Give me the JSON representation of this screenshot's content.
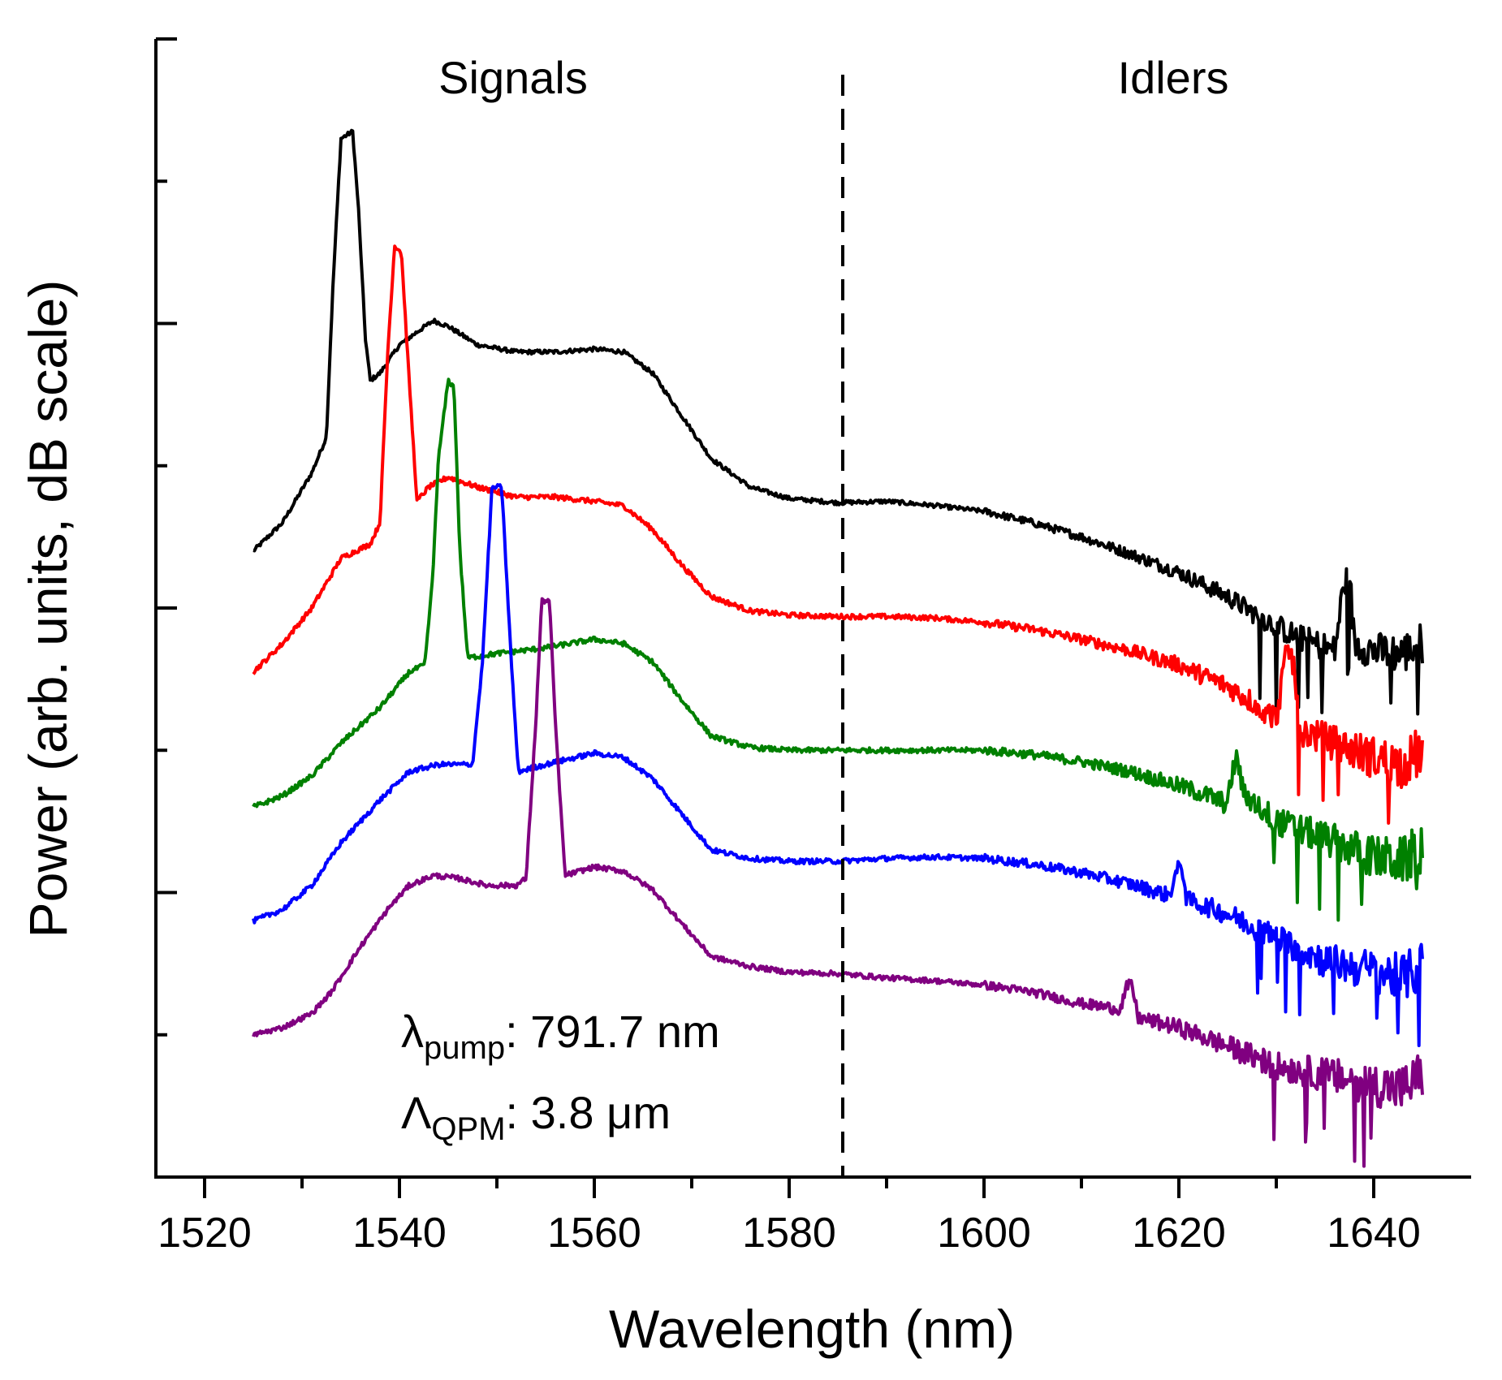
{
  "chart_data": {
    "type": "line",
    "title": "",
    "xlabel": "Wavelength (nm)",
    "ylabel": "Power (arb. units, dB scale)",
    "xlim": [
      1515,
      1650
    ],
    "ylim": [
      0,
      8
    ],
    "x_ticks": [
      "1520",
      "1540",
      "1560",
      "1580",
      "1600",
      "1620",
      "1640"
    ],
    "y_ticks": "unlabeled",
    "grid": false,
    "legend": "none",
    "annotations": {
      "signals": "Signals",
      "idlers": "Idlers",
      "pump_symbol": "λ",
      "pump_sub": "pump",
      "pump_value": ": 791.7 nm",
      "qpm_symbol": "Λ",
      "qpm_sub": "QPM",
      "qpm_value": ": 3.8 μm"
    },
    "divider_x": 1585.5,
    "series": [
      {
        "color": "#000000",
        "noise": 0.06,
        "points": [
          [
            1525,
            4.4
          ],
          [
            1528,
            4.6
          ],
          [
            1531,
            4.95
          ],
          [
            1532.5,
            5.2
          ],
          [
            1533.2,
            6.3
          ],
          [
            1534,
            7.3
          ],
          [
            1535.2,
            7.35
          ],
          [
            1535.8,
            6.8
          ],
          [
            1536.5,
            5.9
          ],
          [
            1537,
            5.6
          ],
          [
            1538,
            5.65
          ],
          [
            1540,
            5.85
          ],
          [
            1542,
            5.95
          ],
          [
            1543.5,
            6.02
          ],
          [
            1545,
            5.98
          ],
          [
            1548,
            5.85
          ],
          [
            1552,
            5.8
          ],
          [
            1556,
            5.8
          ],
          [
            1560,
            5.82
          ],
          [
            1563,
            5.8
          ],
          [
            1566,
            5.65
          ],
          [
            1569,
            5.35
          ],
          [
            1572,
            5.05
          ],
          [
            1576,
            4.85
          ],
          [
            1580,
            4.77
          ],
          [
            1585,
            4.74
          ],
          [
            1590,
            4.75
          ],
          [
            1595,
            4.72
          ],
          [
            1600,
            4.68
          ],
          [
            1605,
            4.6
          ],
          [
            1610,
            4.5
          ],
          [
            1615,
            4.38
          ],
          [
            1620,
            4.25
          ],
          [
            1625,
            4.08
          ],
          [
            1628,
            3.95
          ],
          [
            1632,
            3.8
          ],
          [
            1636,
            3.7
          ],
          [
            1636.5,
            3.95
          ],
          [
            1637,
            4.2
          ],
          [
            1637.6,
            4.15
          ],
          [
            1638,
            3.75
          ],
          [
            1640,
            3.7
          ],
          [
            1643,
            3.68
          ],
          [
            1645,
            3.75
          ]
        ]
      },
      {
        "color": "#ff0000",
        "noise": 0.07,
        "points": [
          [
            1525,
            3.55
          ],
          [
            1528,
            3.75
          ],
          [
            1531,
            4.0
          ],
          [
            1534,
            4.35
          ],
          [
            1537,
            4.45
          ],
          [
            1538,
            4.6
          ],
          [
            1538.8,
            5.8
          ],
          [
            1539.5,
            6.55
          ],
          [
            1540.2,
            6.5
          ],
          [
            1541,
            5.6
          ],
          [
            1541.8,
            4.75
          ],
          [
            1543,
            4.85
          ],
          [
            1545,
            4.92
          ],
          [
            1548,
            4.85
          ],
          [
            1552,
            4.78
          ],
          [
            1556,
            4.78
          ],
          [
            1560,
            4.75
          ],
          [
            1563,
            4.72
          ],
          [
            1566,
            4.55
          ],
          [
            1569,
            4.3
          ],
          [
            1572,
            4.08
          ],
          [
            1576,
            3.98
          ],
          [
            1580,
            3.95
          ],
          [
            1585,
            3.94
          ],
          [
            1590,
            3.94
          ],
          [
            1595,
            3.93
          ],
          [
            1600,
            3.9
          ],
          [
            1605,
            3.85
          ],
          [
            1610,
            3.78
          ],
          [
            1615,
            3.7
          ],
          [
            1620,
            3.6
          ],
          [
            1625,
            3.45
          ],
          [
            1628,
            3.32
          ],
          [
            1630,
            3.22
          ],
          [
            1630.6,
            3.5
          ],
          [
            1631.2,
            3.72
          ],
          [
            1631.8,
            3.6
          ],
          [
            1632.3,
            3.15
          ],
          [
            1636,
            3.05
          ],
          [
            1640,
            2.95
          ],
          [
            1643,
            2.9
          ],
          [
            1645,
            3.0
          ]
        ]
      },
      {
        "color": "#008000",
        "noise": 0.07,
        "points": [
          [
            1525,
            2.6
          ],
          [
            1528,
            2.68
          ],
          [
            1531,
            2.82
          ],
          [
            1534,
            3.05
          ],
          [
            1538,
            3.3
          ],
          [
            1541,
            3.55
          ],
          [
            1542.6,
            3.6
          ],
          [
            1543.4,
            4.2
          ],
          [
            1544,
            5.05
          ],
          [
            1545,
            5.6
          ],
          [
            1545.6,
            5.55
          ],
          [
            1546.2,
            4.4
          ],
          [
            1547,
            3.65
          ],
          [
            1550,
            3.68
          ],
          [
            1555,
            3.72
          ],
          [
            1560,
            3.78
          ],
          [
            1563,
            3.75
          ],
          [
            1566,
            3.62
          ],
          [
            1569,
            3.35
          ],
          [
            1572,
            3.1
          ],
          [
            1576,
            3.02
          ],
          [
            1580,
            3.0
          ],
          [
            1585,
            3.0
          ],
          [
            1590,
            3.0
          ],
          [
            1595,
            3.0
          ],
          [
            1600,
            3.0
          ],
          [
            1605,
            2.97
          ],
          [
            1610,
            2.92
          ],
          [
            1615,
            2.85
          ],
          [
            1620,
            2.75
          ],
          [
            1623,
            2.68
          ],
          [
            1625,
            2.62
          ],
          [
            1625.5,
            2.85
          ],
          [
            1626,
            2.95
          ],
          [
            1626.6,
            2.7
          ],
          [
            1630,
            2.5
          ],
          [
            1635,
            2.38
          ],
          [
            1640,
            2.25
          ],
          [
            1643,
            2.22
          ],
          [
            1645,
            2.32
          ]
        ]
      },
      {
        "color": "#0000ff",
        "noise": 0.07,
        "points": [
          [
            1525,
            1.8
          ],
          [
            1528,
            1.88
          ],
          [
            1531,
            2.05
          ],
          [
            1534,
            2.35
          ],
          [
            1538,
            2.65
          ],
          [
            1541,
            2.85
          ],
          [
            1544,
            2.9
          ],
          [
            1547.5,
            2.9
          ],
          [
            1548.5,
            3.6
          ],
          [
            1549.5,
            4.85
          ],
          [
            1550.5,
            4.85
          ],
          [
            1551.5,
            3.6
          ],
          [
            1552.2,
            2.85
          ],
          [
            1555,
            2.9
          ],
          [
            1560,
            2.98
          ],
          [
            1563,
            2.95
          ],
          [
            1566,
            2.8
          ],
          [
            1569,
            2.55
          ],
          [
            1572,
            2.3
          ],
          [
            1576,
            2.24
          ],
          [
            1580,
            2.22
          ],
          [
            1585,
            2.22
          ],
          [
            1590,
            2.24
          ],
          [
            1595,
            2.25
          ],
          [
            1600,
            2.24
          ],
          [
            1605,
            2.2
          ],
          [
            1610,
            2.14
          ],
          [
            1615,
            2.06
          ],
          [
            1619,
            1.98
          ],
          [
            1619.8,
            2.15
          ],
          [
            1620.3,
            2.2
          ],
          [
            1620.8,
            1.95
          ],
          [
            1625,
            1.85
          ],
          [
            1630,
            1.68
          ],
          [
            1635,
            1.52
          ],
          [
            1640,
            1.45
          ],
          [
            1643,
            1.4
          ],
          [
            1645,
            1.48
          ]
        ]
      },
      {
        "color": "#800080",
        "noise": 0.07,
        "points": [
          [
            1525,
            1.0
          ],
          [
            1528,
            1.05
          ],
          [
            1531,
            1.15
          ],
          [
            1533,
            1.3
          ],
          [
            1536,
            1.62
          ],
          [
            1539,
            1.9
          ],
          [
            1541,
            2.05
          ],
          [
            1543.5,
            2.12
          ],
          [
            1546,
            2.1
          ],
          [
            1549,
            2.05
          ],
          [
            1552,
            2.05
          ],
          [
            1553,
            2.1
          ],
          [
            1554,
            3.2
          ],
          [
            1554.6,
            4.05
          ],
          [
            1555.4,
            4.05
          ],
          [
            1556,
            3.2
          ],
          [
            1557,
            2.12
          ],
          [
            1560,
            2.18
          ],
          [
            1563,
            2.15
          ],
          [
            1566,
            2.02
          ],
          [
            1569,
            1.78
          ],
          [
            1572,
            1.55
          ],
          [
            1576,
            1.48
          ],
          [
            1580,
            1.44
          ],
          [
            1585,
            1.43
          ],
          [
            1590,
            1.4
          ],
          [
            1595,
            1.38
          ],
          [
            1600,
            1.35
          ],
          [
            1605,
            1.3
          ],
          [
            1610,
            1.22
          ],
          [
            1614,
            1.18
          ],
          [
            1614.6,
            1.33
          ],
          [
            1615.2,
            1.35
          ],
          [
            1615.8,
            1.12
          ],
          [
            1620,
            1.05
          ],
          [
            1625,
            0.92
          ],
          [
            1630,
            0.78
          ],
          [
            1635,
            0.72
          ],
          [
            1640,
            0.65
          ],
          [
            1643,
            0.62
          ],
          [
            1645,
            0.72
          ]
        ]
      }
    ]
  }
}
